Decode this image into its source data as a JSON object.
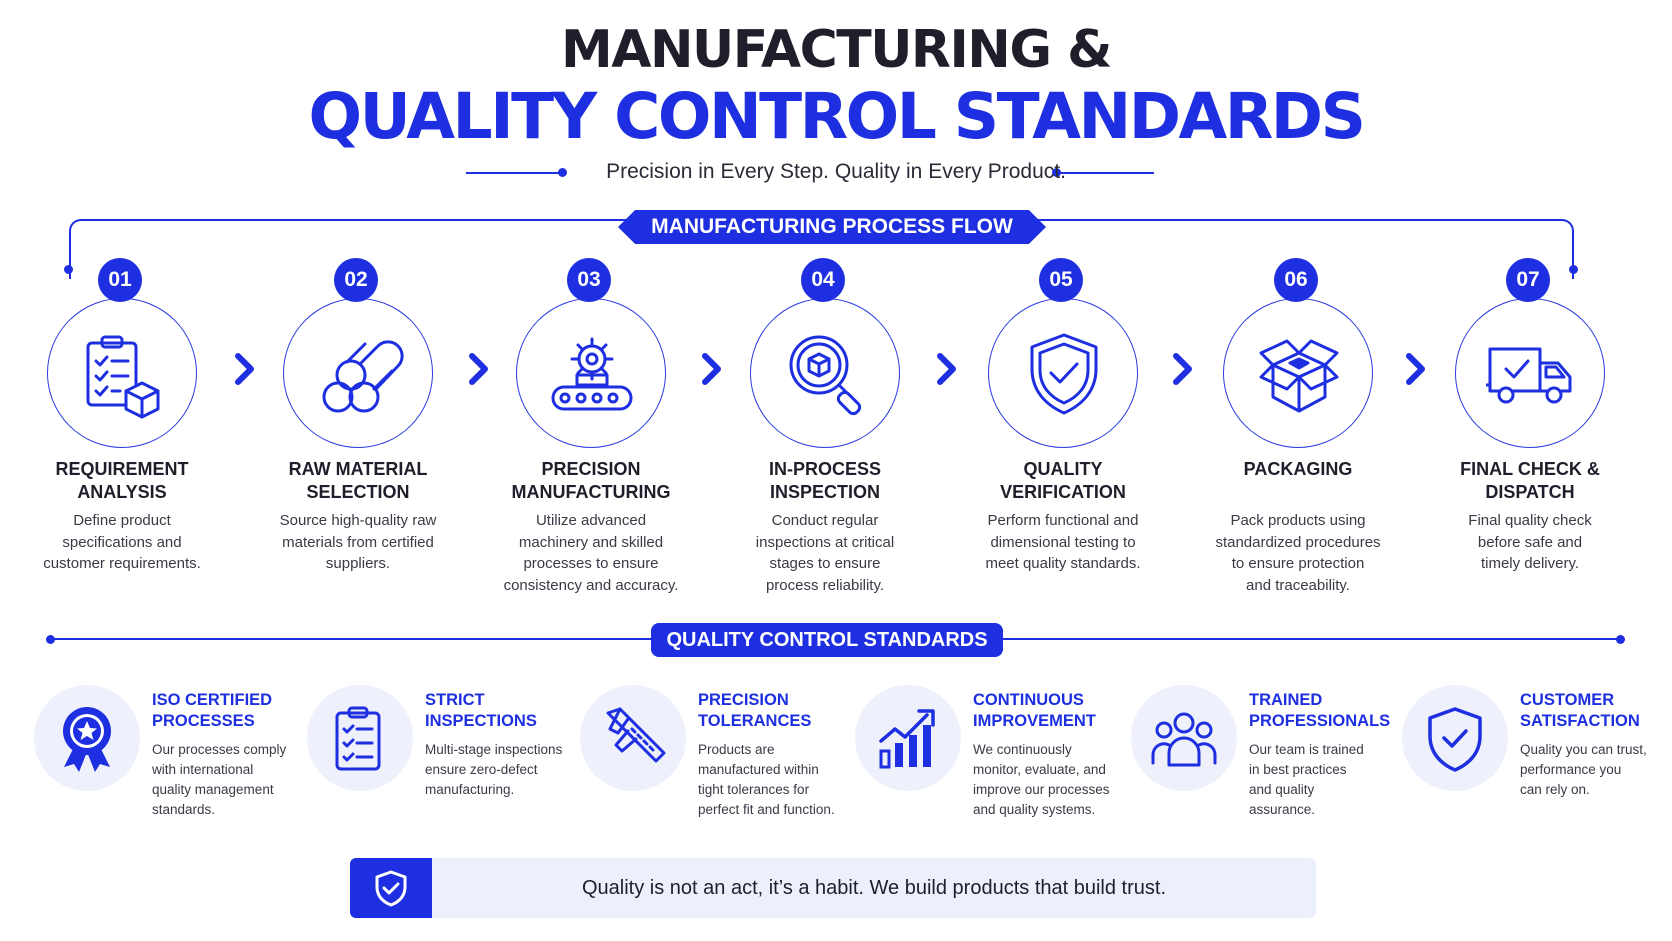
{
  "header": {
    "title_line1": "MANUFACTURING &",
    "title_line2": "QUALITY CONTROL STANDARDS",
    "subtitle": "Precision in Every Step. Quality in Every Product."
  },
  "process": {
    "heading": "MANUFACTURING PROCESS FLOW",
    "steps": [
      {
        "num": "01",
        "name_line1": "REQUIREMENT",
        "name_line2": "ANALYSIS",
        "icon": "clipboard-checklist-icon",
        "desc": [
          "Define product",
          "specifications and",
          "customer requirements."
        ]
      },
      {
        "num": "02",
        "name_line1": "RAW MATERIAL",
        "name_line2": "SELECTION",
        "icon": "material-rods-icon",
        "desc": [
          "Source high-quality raw",
          "materials from certified",
          "suppliers."
        ]
      },
      {
        "num": "03",
        "name_line1": "PRECISION",
        "name_line2": "MANUFACTURING",
        "icon": "gear-conveyor-icon",
        "desc": [
          "Utilize advanced",
          "machinery and skilled",
          "processes to ensure",
          "consistency and accuracy."
        ]
      },
      {
        "num": "04",
        "name_line1": "IN-PROCESS",
        "name_line2": "INSPECTION",
        "icon": "magnifier-box-icon",
        "desc": [
          "Conduct regular",
          "inspections at critical",
          "stages to ensure",
          "process reliability."
        ]
      },
      {
        "num": "05",
        "name_line1": "QUALITY",
        "name_line2": "VERIFICATION",
        "icon": "shield-check-icon",
        "desc": [
          "Perform functional and",
          "dimensional testing to",
          "meet quality standards."
        ]
      },
      {
        "num": "06",
        "name_line1": "PACKAGING",
        "name_line2": "",
        "icon": "open-box-icon",
        "desc": [
          "Pack products using",
          "standardized procedures",
          "to ensure protection",
          "and traceability."
        ]
      },
      {
        "num": "07",
        "name_line1": "FINAL CHECK &",
        "name_line2": "DISPATCH",
        "icon": "delivery-truck-icon",
        "desc": [
          "Final quality check",
          "before safe and",
          "timely delivery."
        ]
      }
    ]
  },
  "standards": {
    "heading": "QUALITY CONTROL STANDARDS",
    "items": [
      {
        "title_line1": "ISO CERTIFIED",
        "title_line2": "PROCESSES",
        "icon": "award-ribbon-icon",
        "desc": [
          "Our processes comply",
          "with international",
          "quality management",
          "standards."
        ]
      },
      {
        "title_line1": "STRICT",
        "title_line2": "INSPECTIONS",
        "icon": "checklist-icon",
        "desc": [
          "Multi-stage inspections",
          "ensure zero-defect",
          "manufacturing."
        ]
      },
      {
        "title_line1": "PRECISION",
        "title_line2": "TOLERANCES",
        "icon": "caliper-icon",
        "desc": [
          "Products are",
          "manufactured within",
          "tight tolerances for",
          "perfect fit and function."
        ]
      },
      {
        "title_line1": "CONTINUOUS",
        "title_line2": "IMPROVEMENT",
        "icon": "growth-chart-icon",
        "desc": [
          "We continuously",
          "monitor, evaluate, and",
          "improve our processes",
          "and quality systems."
        ]
      },
      {
        "title_line1": "TRAINED",
        "title_line2": "PROFESSIONALS",
        "icon": "team-icon",
        "desc": [
          "Our team is trained",
          "in best practices",
          "and quality",
          "assurance."
        ]
      },
      {
        "title_line1": "CUSTOMER",
        "title_line2": "SATISFACTION",
        "icon": "shield-check-icon",
        "desc": [
          "Quality you can trust,",
          "performance you",
          "can rely on."
        ]
      }
    ]
  },
  "footer": {
    "quote": "Quality is not an act, it’s a habit. We build products that build trust.",
    "icon": "shield-check-icon"
  },
  "colors": {
    "accent": "#1d2fe0",
    "text": "#1f1f2b",
    "icon_bg": "#eef0fb"
  }
}
